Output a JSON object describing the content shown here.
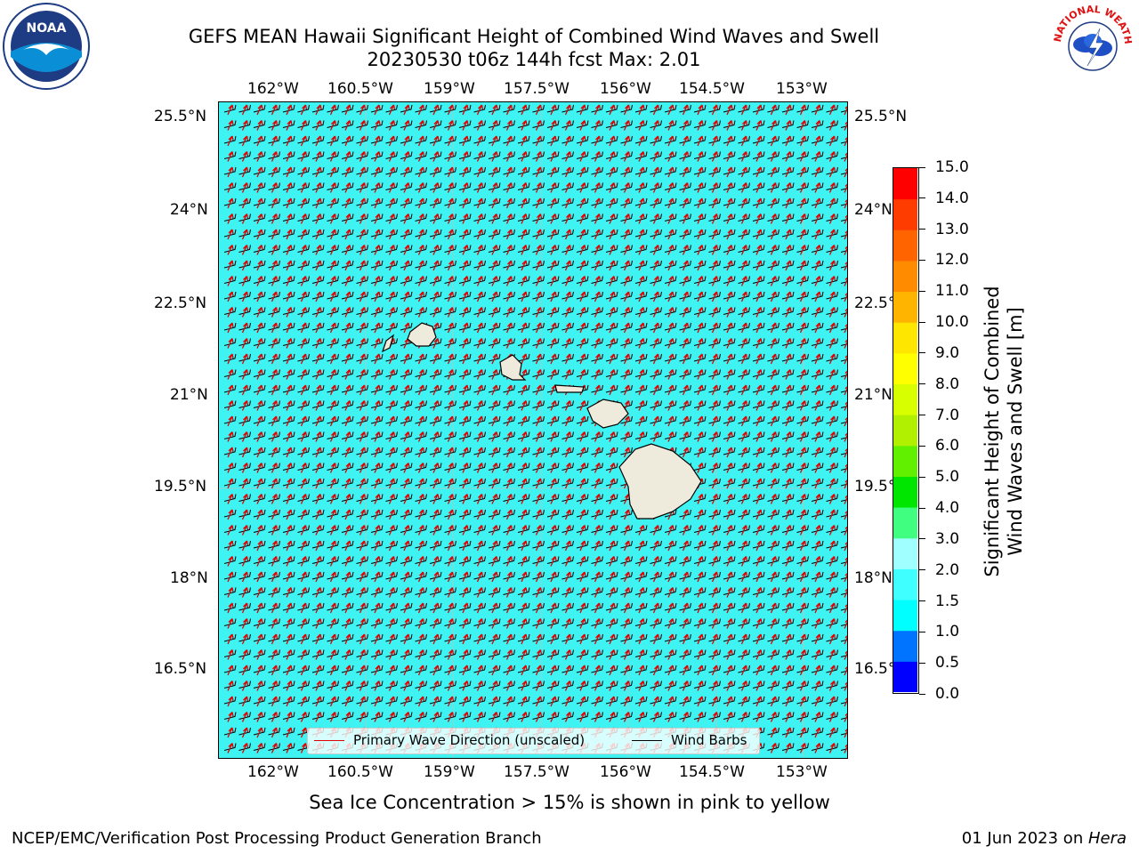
{
  "title": {
    "line1": "GEFS MEAN Hawaii Significant Height of Combined Wind Waves and Swell",
    "line2": "20230530 t06z 144h fcst   Max: 2.01"
  },
  "logos": {
    "left": {
      "icon": "noaa-logo",
      "text": "NOAA"
    },
    "right": {
      "icon": "nws-logo",
      "text": "NATIONAL WEATHER SERVICE"
    }
  },
  "map": {
    "longitude_labels": [
      "162°W",
      "160.5°W",
      "159°W",
      "157.5°W",
      "156°W",
      "154.5°W",
      "153°W"
    ],
    "latitude_labels": [
      "25.5°N",
      "24°N",
      "22.5°N",
      "21°N",
      "19.5°N",
      "18°N",
      "16.5°N"
    ],
    "ocean_color": "#3ff3f3",
    "land_color": "#efebdc",
    "wave_arrow_color": "#e00000",
    "barb_color": "#000000"
  },
  "colorbar": {
    "title": "Significant Height of Combined\nWind Waves and Swell [m]",
    "ticks": [
      "0.0",
      "0.5",
      "1.0",
      "1.5",
      "2.0",
      "3.0",
      "4.0",
      "5.0",
      "6.0",
      "7.0",
      "8.0",
      "9.0",
      "10.0",
      "11.0",
      "12.0",
      "13.0",
      "14.0",
      "15.0"
    ],
    "colors": [
      "#0000ff",
      "#0073ff",
      "#00ffff",
      "#40ffff",
      "#a0ffff",
      "#40ff80",
      "#00e600",
      "#60f000",
      "#b0f000",
      "#d8ff00",
      "#ffff00",
      "#ffe600",
      "#ffb400",
      "#ff8c00",
      "#ff6400",
      "#ff3c00",
      "#ff0000"
    ]
  },
  "legend": {
    "wave": "Primary Wave Direction (unscaled)",
    "barbs": "Wind Barbs"
  },
  "ice_note": "Sea Ice Concentration > 15% is shown in pink to yellow",
  "footer": {
    "left": "NCEP/EMC/Verification Post Processing Product Generation Branch",
    "date": "01 Jun 2023 on ",
    "host": "Hera"
  }
}
